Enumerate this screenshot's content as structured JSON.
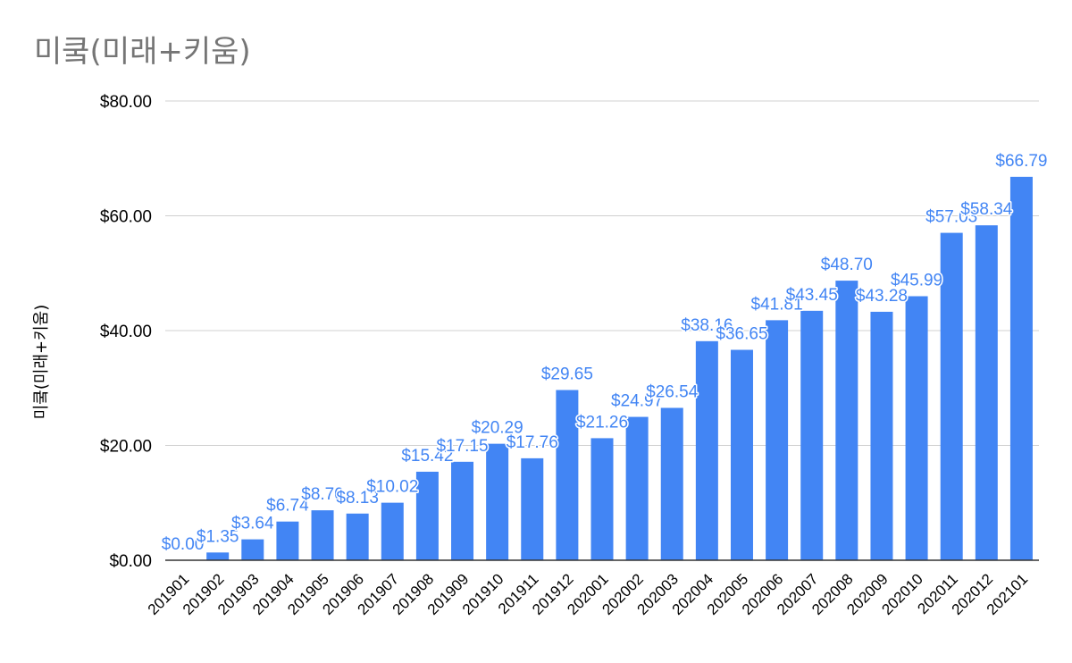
{
  "chart_data": {
    "type": "bar",
    "title": "미쿸(미래+키움)",
    "xlabel": "",
    "ylabel": "미쿸(미래+키움)",
    "ylim": [
      0,
      80
    ],
    "yticks": [
      0,
      20,
      40,
      60,
      80
    ],
    "ytick_labels": [
      "$0.00",
      "$20.00",
      "$40.00",
      "$60.00",
      "$80.00"
    ],
    "grid": true,
    "legend": "none",
    "bar_color": "#4285f4",
    "label_color": "#4285f4",
    "categories": [
      "201901",
      "201902",
      "201903",
      "201904",
      "201905",
      "201906",
      "201907",
      "201908",
      "201909",
      "201910",
      "201911",
      "201912",
      "202001",
      "202002",
      "202003",
      "202004",
      "202005",
      "202006",
      "202007",
      "202008",
      "202009",
      "202010",
      "202011",
      "202012",
      "202101"
    ],
    "values": [
      0.0,
      1.35,
      3.64,
      6.74,
      8.7,
      8.13,
      10.02,
      15.42,
      17.15,
      20.29,
      17.76,
      29.65,
      21.26,
      24.97,
      26.54,
      38.16,
      36.65,
      41.81,
      43.45,
      48.7,
      43.28,
      45.99,
      57.03,
      58.34,
      66.79
    ],
    "value_labels": [
      "$0.00",
      "$1.35",
      "$3.64",
      "$6.74",
      "$8.70",
      "$8.13",
      "$10.02",
      "$15.42",
      "$17.15",
      "$20.29",
      "$17.76",
      "$29.65",
      "$21.26",
      "$24.97",
      "$26.54",
      "$38.16",
      "$36.65",
      "$41.81",
      "$43.45",
      "$48.70",
      "$43.28",
      "$45.99",
      "$57.03",
      "$58.34",
      "$66.79"
    ]
  }
}
